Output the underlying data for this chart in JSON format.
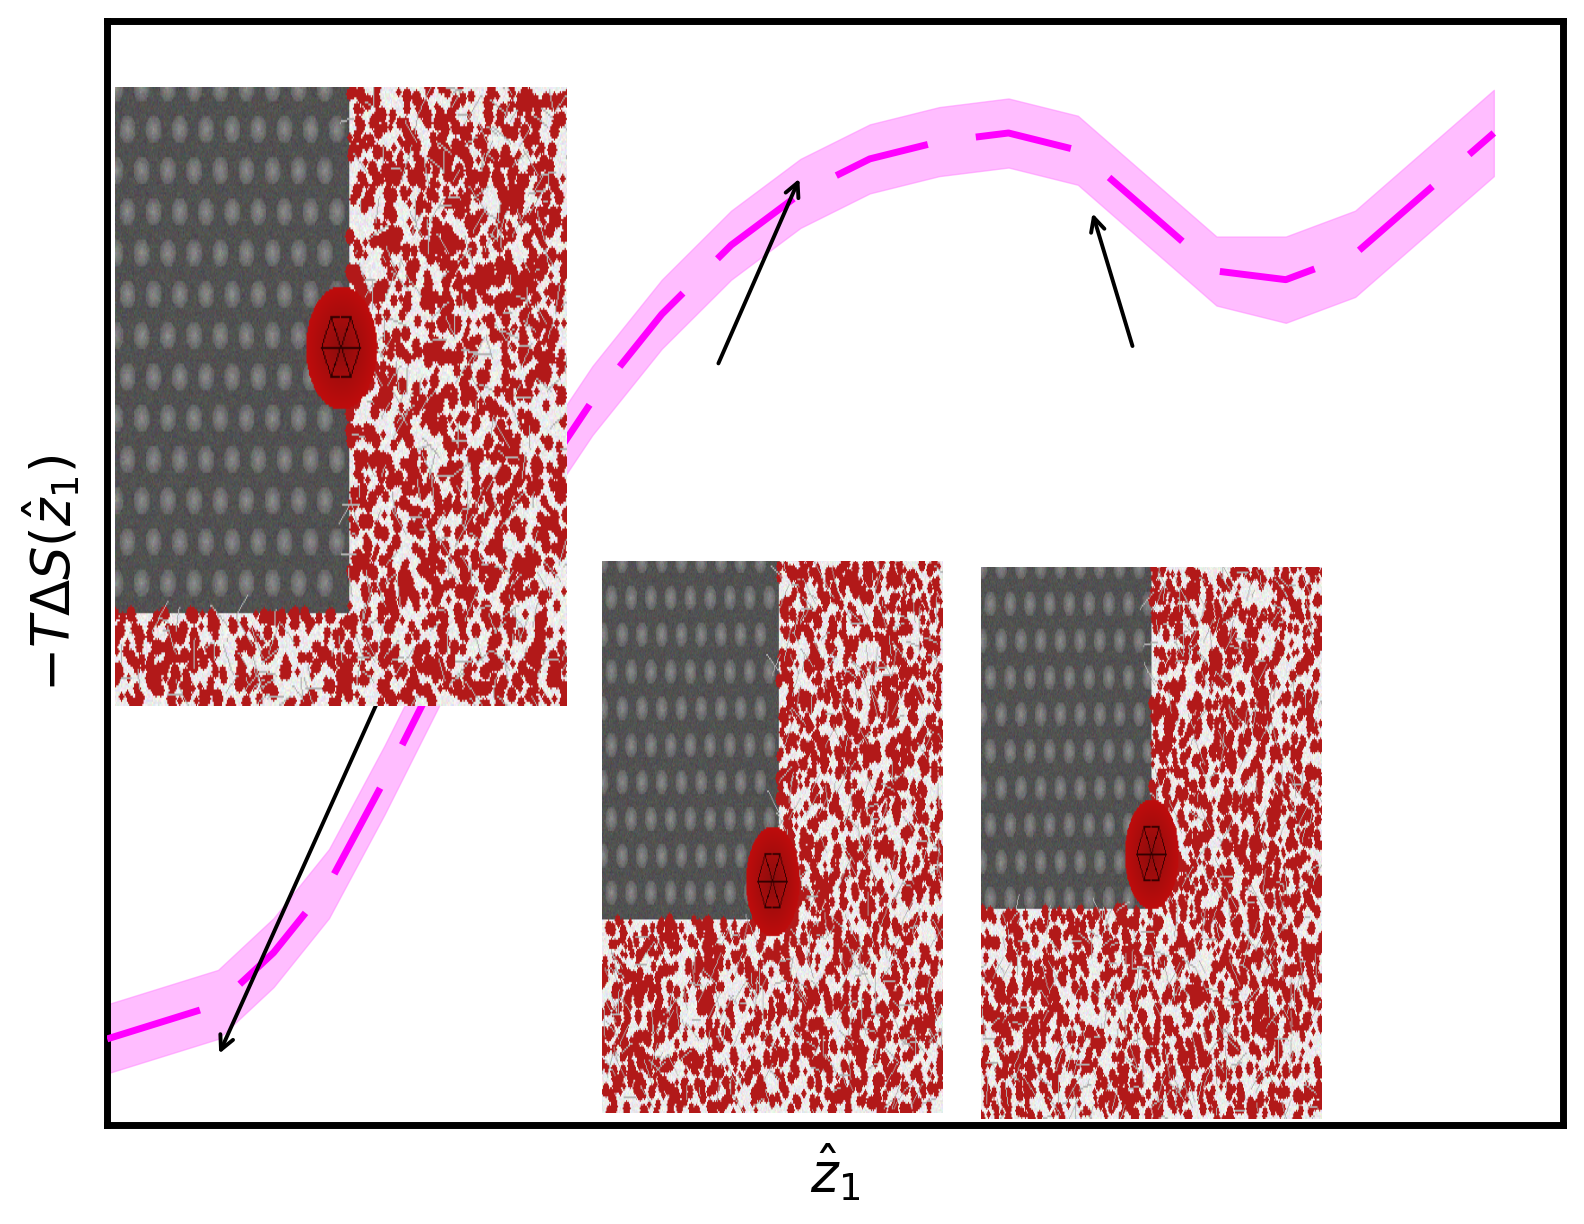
{
  "curve_x": [
    0.0,
    0.04,
    0.08,
    0.12,
    0.16,
    0.2,
    0.25,
    0.3,
    0.35,
    0.4,
    0.45,
    0.5,
    0.55,
    0.6,
    0.65,
    0.7,
    0.75,
    0.8,
    0.85,
    0.9,
    0.95,
    1.0
  ],
  "curve_y": [
    -0.08,
    -0.06,
    -0.04,
    0.02,
    0.1,
    0.22,
    0.38,
    0.54,
    0.66,
    0.76,
    0.84,
    0.9,
    0.94,
    0.96,
    0.97,
    0.95,
    0.88,
    0.81,
    0.8,
    0.83,
    0.9,
    0.97
  ],
  "error_upper": [
    -0.04,
    -0.02,
    0.0,
    0.06,
    0.14,
    0.26,
    0.42,
    0.58,
    0.7,
    0.8,
    0.88,
    0.94,
    0.98,
    1.0,
    1.01,
    0.99,
    0.92,
    0.85,
    0.85,
    0.88,
    0.95,
    1.02
  ],
  "error_lower": [
    -0.12,
    -0.1,
    -0.08,
    -0.02,
    0.06,
    0.18,
    0.34,
    0.5,
    0.62,
    0.72,
    0.8,
    0.86,
    0.9,
    0.92,
    0.93,
    0.91,
    0.84,
    0.77,
    0.75,
    0.78,
    0.85,
    0.92
  ],
  "curve_color": "#FF00FF",
  "fill_color": "#FF88FF",
  "fill_alpha": 0.55,
  "line_width": 5.0,
  "dash_on": 14,
  "dash_off": 7,
  "xlabel": "$\\hat{z}_1$",
  "ylabel": "$-T\\Delta S(\\hat{z}_1)$",
  "xlim": [
    0.0,
    1.05
  ],
  "ylim": [
    -0.18,
    1.1
  ],
  "xlabel_fontsize": 38,
  "ylabel_fontsize": 38,
  "background_color": "#ffffff",
  "spine_linewidth": 5,
  "arrow_lw": 2.8,
  "arrow_mutation_scale": 25
}
